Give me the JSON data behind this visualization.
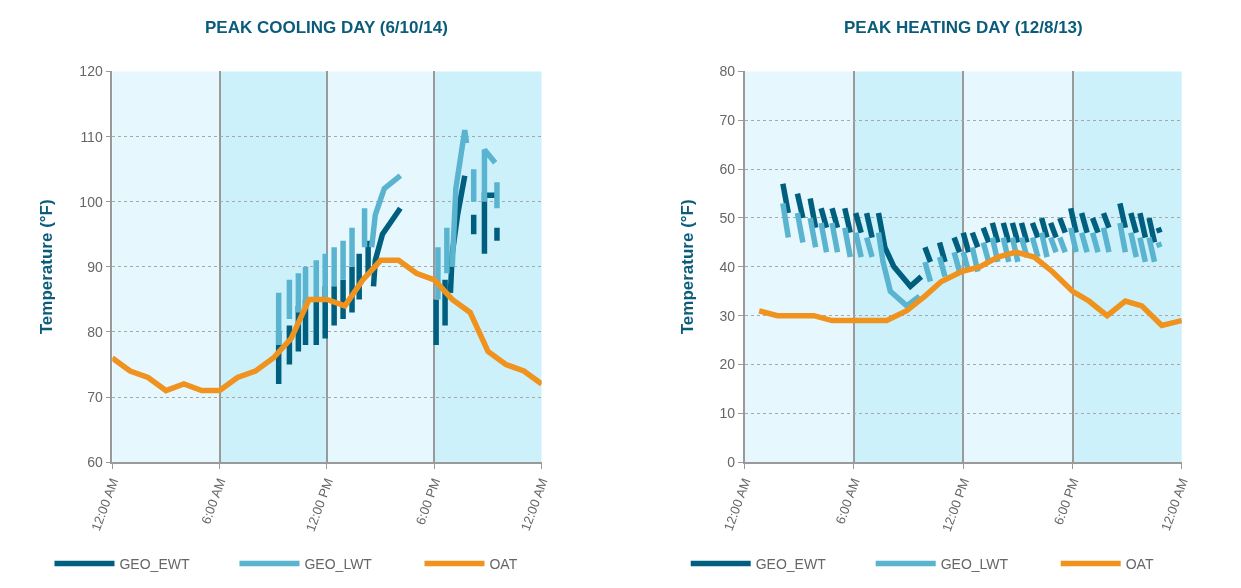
{
  "chart_data": [
    {
      "type": "line",
      "title": "PEAK COOLING DAY (6/10/14)",
      "ylabel": "Temperature (°F)",
      "xlim": [
        0,
        24
      ],
      "xticks": [
        {
          "value": 0,
          "label": "12:00 AM"
        },
        {
          "value": 6,
          "label": "6:00 AM"
        },
        {
          "value": 12,
          "label": "12:00 PM"
        },
        {
          "value": 18,
          "label": "6:00 PM"
        },
        {
          "value": 24,
          "label": "12:00 AM"
        }
      ],
      "ylim": [
        60,
        120
      ],
      "yticks": [
        60,
        70,
        80,
        90,
        100,
        110,
        120
      ],
      "grid": true,
      "legend": "bottom",
      "bands": [
        {
          "axis": "x",
          "from": 0,
          "to": 6,
          "color": "#e6f8fd"
        },
        {
          "axis": "x",
          "from": 6,
          "to": 12,
          "color": "#cdf1fb"
        },
        {
          "axis": "x",
          "from": 12,
          "to": 18,
          "color": "#e6f8fd"
        },
        {
          "axis": "x",
          "from": 18,
          "to": 24,
          "color": "#cdf1fb"
        }
      ],
      "series": [
        {
          "name": "GEO_EWT",
          "color": "#005f7f",
          "x": [
            9.3,
            9.3,
            null,
            9.9,
            9.9,
            null,
            10.4,
            10.4,
            null,
            10.8,
            10.8,
            null,
            11.4,
            11.4,
            null,
            11.9,
            11.9,
            null,
            12.4,
            12.4,
            null,
            12.9,
            12.9,
            null,
            13.4,
            13.4,
            null,
            13.8,
            13.8,
            null,
            14.3,
            14.3,
            null,
            14.6,
            14.7,
            15.1,
            15.6,
            16.1,
            null,
            18.1,
            18.1,
            null,
            18.6,
            18.6,
            null,
            18.9,
            19.0,
            19.3,
            19.7,
            null,
            20.2,
            20.2,
            null,
            20.8,
            20.8,
            21.4,
            null,
            21.5,
            21.5
          ],
          "values": [
            72,
            80,
            null,
            75,
            81,
            null,
            77,
            84,
            null,
            78,
            85,
            null,
            78,
            85,
            null,
            79,
            87,
            null,
            81,
            87,
            null,
            82,
            88,
            null,
            83,
            90,
            null,
            85,
            92,
            null,
            89,
            94,
            null,
            87,
            91,
            95,
            97,
            99,
            null,
            78,
            85,
            null,
            81,
            88,
            null,
            86,
            92,
            98,
            104,
            null,
            95,
            98,
            null,
            92,
            101,
            101,
            null,
            94,
            96
          ]
        },
        {
          "name": "GEO_LWT",
          "color": "#5ab4cf",
          "x": [
            9.3,
            9.3,
            null,
            9.9,
            9.9,
            null,
            10.4,
            10.4,
            null,
            10.8,
            10.8,
            null,
            11.4,
            11.4,
            null,
            11.9,
            11.9,
            null,
            12.4,
            12.4,
            null,
            12.9,
            12.9,
            null,
            13.4,
            13.4,
            null,
            14.1,
            14.1,
            null,
            14.5,
            14.7,
            15.2,
            16.1,
            null,
            18.2,
            18.2,
            null,
            18.7,
            18.7,
            null,
            19.0,
            19.2,
            19.7,
            19.8,
            null,
            20.2,
            20.2,
            null,
            20.8,
            20.8,
            21.4,
            null,
            21.5,
            21.5
          ],
          "values": [
            78,
            86,
            null,
            82,
            88,
            null,
            83,
            89,
            null,
            84,
            90,
            null,
            85,
            91,
            null,
            85,
            92,
            null,
            87,
            93,
            null,
            88,
            94,
            null,
            90,
            96,
            null,
            93,
            99,
            null,
            93,
            98,
            102,
            104,
            null,
            85,
            93,
            null,
            89,
            96,
            null,
            90,
            102,
            111,
            109,
            null,
            100,
            105,
            null,
            100,
            108,
            106,
            null,
            99,
            103
          ]
        },
        {
          "name": "OAT",
          "color": "#f0921e",
          "x": [
            0,
            1,
            2,
            3,
            4,
            5,
            6,
            7,
            8,
            9,
            10,
            11,
            12,
            13,
            14,
            15,
            16,
            17,
            18,
            19,
            20,
            21,
            22,
            23,
            24
          ],
          "values": [
            76,
            74,
            73,
            71,
            72,
            71,
            71,
            73,
            74,
            76,
            79,
            85,
            85,
            84,
            88,
            91,
            91,
            89,
            88,
            85,
            83,
            77,
            75,
            74,
            72
          ]
        }
      ]
    },
    {
      "type": "line",
      "title": "PEAK HEATING DAY (12/8/13)",
      "ylabel": "Temperature (°F)",
      "xlim": [
        0,
        24
      ],
      "xticks": [
        {
          "value": 0,
          "label": "12:00 AM"
        },
        {
          "value": 6,
          "label": "6:00 AM"
        },
        {
          "value": 12,
          "label": "12:00 PM"
        },
        {
          "value": 18,
          "label": "6:00 PM"
        },
        {
          "value": 24,
          "label": "12:00 AM"
        }
      ],
      "ylim": [
        0,
        80
      ],
      "yticks": [
        0,
        10,
        20,
        30,
        40,
        50,
        60,
        70,
        80
      ],
      "grid": true,
      "legend": "bottom",
      "bands": [
        {
          "axis": "x",
          "from": 0,
          "to": 6,
          "color": "#e6f8fd"
        },
        {
          "axis": "x",
          "from": 6,
          "to": 12,
          "color": "#cdf1fb"
        },
        {
          "axis": "x",
          "from": 12,
          "to": 18,
          "color": "#e6f8fd"
        },
        {
          "axis": "x",
          "from": 18,
          "to": 24,
          "color": "#cdf1fb"
        }
      ],
      "series": [
        {
          "name": "GEO_EWT",
          "color": "#005f7f",
          "x": [
            2.1,
            2.4,
            null,
            2.9,
            3.2,
            null,
            3.6,
            3.9,
            null,
            4.2,
            4.5,
            null,
            4.8,
            5.1,
            null,
            5.5,
            5.8,
            null,
            6.1,
            6.4,
            null,
            6.7,
            7.0,
            null,
            7.35,
            7.7,
            8.2,
            9.1,
            9.7,
            null,
            9.9,
            10.2,
            null,
            10.7,
            11.0,
            null,
            11.5,
            11.8,
            null,
            12.0,
            12.3,
            null,
            12.5,
            12.8,
            null,
            13.1,
            13.4,
            null,
            13.6,
            13.9,
            null,
            14.2,
            14.5,
            null,
            14.7,
            15.0,
            null,
            15.2,
            15.5,
            null,
            15.8,
            16.1,
            null,
            16.3,
            16.6,
            null,
            16.8,
            17.1,
            null,
            17.3,
            17.6,
            null,
            17.9,
            18.2,
            null,
            18.5,
            18.8,
            null,
            19.1,
            19.4,
            null,
            19.7,
            20.0,
            null,
            20.6,
            20.9,
            null,
            21.2,
            21.5,
            null,
            21.7,
            22.0,
            null,
            22.2,
            22.5,
            null,
            22.7,
            22.8
          ],
          "values": [
            57,
            51,
            null,
            55,
            50,
            null,
            54,
            48,
            null,
            52,
            48,
            null,
            52,
            48,
            null,
            52,
            47,
            null,
            51,
            47,
            null,
            51,
            46,
            null,
            51,
            44,
            40,
            36,
            38,
            null,
            44,
            41,
            null,
            45,
            41,
            null,
            46,
            43,
            null,
            47,
            43,
            null,
            47,
            44,
            null,
            48,
            45,
            null,
            49,
            45,
            null,
            49,
            45,
            null,
            49,
            45,
            null,
            49,
            45,
            null,
            49,
            46,
            null,
            50,
            46,
            null,
            49,
            46,
            null,
            50,
            47,
            null,
            52,
            47,
            null,
            51,
            47,
            null,
            50,
            47,
            null,
            51,
            48,
            null,
            53,
            48,
            null,
            51,
            47,
            null,
            51,
            46,
            null,
            50,
            45,
            null,
            48,
            47
          ]
        },
        {
          "name": "GEO_LWT",
          "color": "#5ab4cf",
          "x": [
            2.1,
            2.4,
            null,
            2.9,
            3.2,
            null,
            3.6,
            3.9,
            null,
            4.2,
            4.5,
            null,
            4.8,
            5.1,
            null,
            5.5,
            5.8,
            null,
            6.1,
            6.4,
            null,
            6.7,
            7.0,
            null,
            7.35,
            7.6,
            8.0,
            8.9,
            9.6,
            null,
            9.9,
            10.2,
            null,
            10.7,
            11.0,
            null,
            11.5,
            11.8,
            null,
            12.0,
            12.3,
            null,
            12.5,
            12.8,
            null,
            13.1,
            13.4,
            null,
            13.6,
            13.9,
            null,
            14.2,
            14.5,
            null,
            14.7,
            15.0,
            null,
            15.2,
            15.5,
            null,
            15.8,
            16.1,
            null,
            16.3,
            16.6,
            null,
            16.8,
            17.1,
            null,
            17.3,
            17.6,
            null,
            17.9,
            18.2,
            null,
            18.5,
            18.8,
            null,
            19.1,
            19.4,
            null,
            19.7,
            20.0,
            null,
            20.6,
            20.9,
            null,
            21.2,
            21.5,
            null,
            21.7,
            22.0,
            null,
            22.2,
            22.5,
            null,
            22.7,
            22.8
          ],
          "values": [
            53,
            46,
            null,
            51,
            45,
            null,
            50,
            44,
            null,
            49,
            43,
            null,
            49,
            43,
            null,
            48,
            42,
            null,
            47,
            42,
            null,
            46,
            42,
            null,
            47,
            41,
            35,
            32,
            34,
            null,
            41,
            37,
            null,
            42,
            38,
            null,
            43,
            39,
            null,
            43,
            39,
            null,
            44,
            39,
            null,
            45,
            41,
            null,
            46,
            41,
            null,
            46,
            41,
            null,
            46,
            41,
            null,
            46,
            42,
            null,
            46,
            42,
            null,
            47,
            42,
            null,
            46,
            43,
            null,
            46,
            43,
            null,
            48,
            43,
            null,
            47,
            43,
            null,
            47,
            43,
            null,
            48,
            43,
            null,
            49,
            43,
            null,
            47,
            42,
            null,
            46,
            41,
            null,
            46,
            41,
            null,
            45,
            44
          ]
        },
        {
          "name": "OAT",
          "color": "#f0921e",
          "x": [
            0.8,
            1.8,
            2.8,
            3.8,
            4.8,
            5.8,
            6.8,
            7.8,
            8.9,
            9.9,
            10.8,
            11.9,
            12.9,
            13.9,
            14.9,
            15.9,
            16.9,
            18.0,
            18.9,
            19.9,
            20.9,
            21.8,
            22.9,
            24
          ],
          "values": [
            31,
            30,
            30,
            30,
            29,
            29,
            29,
            29,
            31,
            34,
            37,
            39,
            40,
            42,
            43,
            42,
            39,
            35,
            33,
            30,
            33,
            32,
            28,
            29
          ]
        }
      ]
    }
  ]
}
